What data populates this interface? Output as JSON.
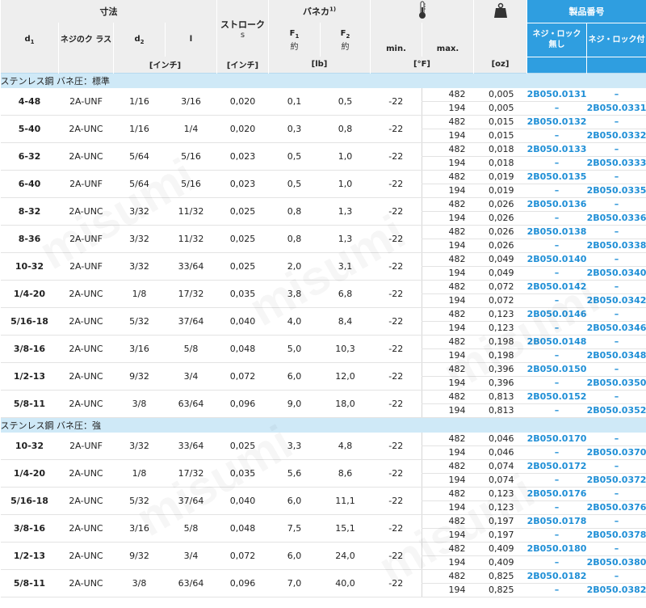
{
  "header": {
    "dimensions": "寸法",
    "d1": "d",
    "d1_sub": "1",
    "thread_class": "ネジのク ラス",
    "d2": "d",
    "d2_sub": "2",
    "l": "l",
    "inch_unit": "[インチ]",
    "stroke": "ストローク",
    "stroke_s": "s",
    "stroke_unit": "[インチ]",
    "spring_force": "バネカ",
    "spring_sup": "1)",
    "f1": "F",
    "f1_sub": "1",
    "f1_approx": "約",
    "f2": "F",
    "f2_sub": "2",
    "f2_approx": "約",
    "force_unit": "[lb]",
    "temp_min": "min.",
    "temp_max": "max.",
    "temp_unit": "[°F]",
    "weight_unit": "[oz]",
    "product_no": "製品番号",
    "no_lock": "ネジ・ロック 無し",
    "with_lock": "ネジ・ロック付"
  },
  "icons": {
    "temperature": "thermometer-icon",
    "weight": "weight-icon"
  },
  "colors": {
    "product_header": "#2f9ee0",
    "section_band": "#cfe9f7",
    "part_number": "#1f8fd6"
  },
  "sections": [
    {
      "title": "ステンレス鋼 バネ圧：標準",
      "rows": [
        {
          "d1": "4-48",
          "cls": "2A-UNF",
          "d2": "1/16",
          "l": "3/16",
          "s": "0,020",
          "f1": "0,1",
          "f2": "0,5",
          "min": "-22",
          "sub": [
            {
              "max": "482",
              "w": "0,005",
              "p1": "2B050.0131",
              "p2": "–"
            },
            {
              "max": "194",
              "w": "0,005",
              "p1": "–",
              "p2": "2B050.0331"
            }
          ]
        },
        {
          "d1": "5-40",
          "cls": "2A-UNC",
          "d2": "1/16",
          "l": "1/4",
          "s": "0,020",
          "f1": "0,3",
          "f2": "0,8",
          "min": "-22",
          "sub": [
            {
              "max": "482",
              "w": "0,015",
              "p1": "2B050.0132",
              "p2": "–"
            },
            {
              "max": "194",
              "w": "0,015",
              "p1": "–",
              "p2": "2B050.0332"
            }
          ]
        },
        {
          "d1": "6-32",
          "cls": "2A-UNC",
          "d2": "5/64",
          "l": "5/16",
          "s": "0,023",
          "f1": "0,5",
          "f2": "1,0",
          "min": "-22",
          "sub": [
            {
              "max": "482",
              "w": "0,018",
              "p1": "2B050.0133",
              "p2": "–"
            },
            {
              "max": "194",
              "w": "0,018",
              "p1": "–",
              "p2": "2B050.0333"
            }
          ]
        },
        {
          "d1": "6-40",
          "cls": "2A-UNF",
          "d2": "5/64",
          "l": "5/16",
          "s": "0,023",
          "f1": "0,5",
          "f2": "1,0",
          "min": "-22",
          "sub": [
            {
              "max": "482",
              "w": "0,019",
              "p1": "2B050.0135",
              "p2": "–"
            },
            {
              "max": "194",
              "w": "0,019",
              "p1": "–",
              "p2": "2B050.0335"
            }
          ]
        },
        {
          "d1": "8-32",
          "cls": "2A-UNC",
          "d2": "3/32",
          "l": "11/32",
          "s": "0,025",
          "f1": "0,8",
          "f2": "1,3",
          "min": "-22",
          "sub": [
            {
              "max": "482",
              "w": "0,026",
              "p1": "2B050.0136",
              "p2": "–"
            },
            {
              "max": "194",
              "w": "0,026",
              "p1": "–",
              "p2": "2B050.0336"
            }
          ]
        },
        {
          "d1": "8-36",
          "cls": "2A-UNF",
          "d2": "3/32",
          "l": "11/32",
          "s": "0,025",
          "f1": "0,8",
          "f2": "1,3",
          "min": "-22",
          "sub": [
            {
              "max": "482",
              "w": "0,026",
              "p1": "2B050.0138",
              "p2": "–"
            },
            {
              "max": "194",
              "w": "0,026",
              "p1": "–",
              "p2": "2B050.0338"
            }
          ]
        },
        {
          "d1": "10-32",
          "cls": "2A-UNF",
          "d2": "3/32",
          "l": "33/64",
          "s": "0,025",
          "f1": "2,0",
          "f2": "3,1",
          "min": "-22",
          "sub": [
            {
              "max": "482",
              "w": "0,049",
              "p1": "2B050.0140",
              "p2": "–"
            },
            {
              "max": "194",
              "w": "0,049",
              "p1": "–",
              "p2": "2B050.0340"
            }
          ]
        },
        {
          "d1": "1/4-20",
          "cls": "2A-UNC",
          "d2": "1/8",
          "l": "17/32",
          "s": "0,035",
          "f1": "3,8",
          "f2": "6,8",
          "min": "-22",
          "sub": [
            {
              "max": "482",
              "w": "0,072",
              "p1": "2B050.0142",
              "p2": "–"
            },
            {
              "max": "194",
              "w": "0,072",
              "p1": "–",
              "p2": "2B050.0342"
            }
          ]
        },
        {
          "d1": "5/16-18",
          "cls": "2A-UNC",
          "d2": "5/32",
          "l": "37/64",
          "s": "0,040",
          "f1": "4,0",
          "f2": "8,4",
          "min": "-22",
          "sub": [
            {
              "max": "482",
              "w": "0,123",
              "p1": "2B050.0146",
              "p2": "–"
            },
            {
              "max": "194",
              "w": "0,123",
              "p1": "–",
              "p2": "2B050.0346"
            }
          ]
        },
        {
          "d1": "3/8-16",
          "cls": "2A-UNC",
          "d2": "3/16",
          "l": "5/8",
          "s": "0,048",
          "f1": "5,0",
          "f2": "10,3",
          "min": "-22",
          "sub": [
            {
              "max": "482",
              "w": "0,198",
              "p1": "2B050.0148",
              "p2": "–"
            },
            {
              "max": "194",
              "w": "0,198",
              "p1": "–",
              "p2": "2B050.0348"
            }
          ]
        },
        {
          "d1": "1/2-13",
          "cls": "2A-UNC",
          "d2": "9/32",
          "l": "3/4",
          "s": "0,072",
          "f1": "6,0",
          "f2": "12,0",
          "min": "-22",
          "sub": [
            {
              "max": "482",
              "w": "0,396",
              "p1": "2B050.0150",
              "p2": "–"
            },
            {
              "max": "194",
              "w": "0,396",
              "p1": "–",
              "p2": "2B050.0350"
            }
          ]
        },
        {
          "d1": "5/8-11",
          "cls": "2A-UNC",
          "d2": "3/8",
          "l": "63/64",
          "s": "0,096",
          "f1": "9,0",
          "f2": "18,0",
          "min": "-22",
          "sub": [
            {
              "max": "482",
              "w": "0,813",
              "p1": "2B050.0152",
              "p2": "–"
            },
            {
              "max": "194",
              "w": "0,813",
              "p1": "–",
              "p2": "2B050.0352"
            }
          ]
        }
      ]
    },
    {
      "title": "ステンレス鋼 バネ圧：強",
      "rows": [
        {
          "d1": "10-32",
          "cls": "2A-UNF",
          "d2": "3/32",
          "l": "33/64",
          "s": "0,025",
          "f1": "3,3",
          "f2": "4,8",
          "min": "-22",
          "sub": [
            {
              "max": "482",
              "w": "0,046",
              "p1": "2B050.0170",
              "p2": "–"
            },
            {
              "max": "194",
              "w": "0,046",
              "p1": "–",
              "p2": "2B050.0370"
            }
          ]
        },
        {
          "d1": "1/4-20",
          "cls": "2A-UNC",
          "d2": "1/8",
          "l": "17/32",
          "s": "0,035",
          "f1": "5,6",
          "f2": "8,6",
          "min": "-22",
          "sub": [
            {
              "max": "482",
              "w": "0,074",
              "p1": "2B050.0172",
              "p2": "–"
            },
            {
              "max": "194",
              "w": "0,074",
              "p1": "–",
              "p2": "2B050.0372"
            }
          ]
        },
        {
          "d1": "5/16-18",
          "cls": "2A-UNC",
          "d2": "5/32",
          "l": "37/64",
          "s": "0,040",
          "f1": "6,0",
          "f2": "11,1",
          "min": "-22",
          "sub": [
            {
              "max": "482",
              "w": "0,123",
              "p1": "2B050.0176",
              "p2": "–"
            },
            {
              "max": "194",
              "w": "0,123",
              "p1": "–",
              "p2": "2B050.0376"
            }
          ]
        },
        {
          "d1": "3/8-16",
          "cls": "2A-UNC",
          "d2": "3/16",
          "l": "5/8",
          "s": "0,048",
          "f1": "7,5",
          "f2": "15,1",
          "min": "-22",
          "sub": [
            {
              "max": "482",
              "w": "0,197",
              "p1": "2B050.0178",
              "p2": "–"
            },
            {
              "max": "194",
              "w": "0,197",
              "p1": "–",
              "p2": "2B050.0378"
            }
          ]
        },
        {
          "d1": "1/2-13",
          "cls": "2A-UNC",
          "d2": "9/32",
          "l": "3/4",
          "s": "0,072",
          "f1": "6,0",
          "f2": "24,0",
          "min": "-22",
          "sub": [
            {
              "max": "482",
              "w": "0,409",
              "p1": "2B050.0180",
              "p2": "–"
            },
            {
              "max": "194",
              "w": "0,409",
              "p1": "–",
              "p2": "2B050.0380"
            }
          ]
        },
        {
          "d1": "5/8-11",
          "cls": "2A-UNC",
          "d2": "3/8",
          "l": "63/64",
          "s": "0,096",
          "f1": "7,0",
          "f2": "40,0",
          "min": "-22",
          "sub": [
            {
              "max": "482",
              "w": "0,825",
              "p1": "2B050.0182",
              "p2": "–"
            },
            {
              "max": "194",
              "w": "0,825",
              "p1": "–",
              "p2": "2B050.0382"
            }
          ]
        }
      ]
    }
  ]
}
